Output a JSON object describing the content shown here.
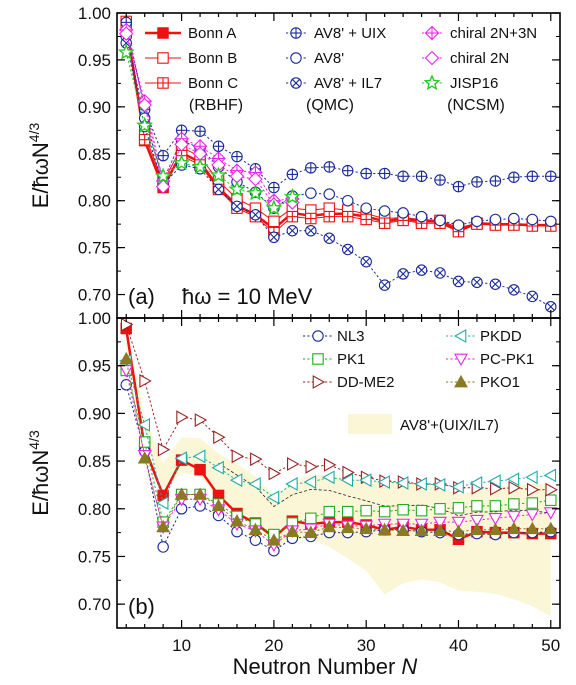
{
  "chart_data": [
    {
      "panel": "(a)",
      "type": "line",
      "annotation": "ħω = 10 MeV",
      "ylabel": "E/ħωN^{4/3}",
      "xlabel": "",
      "xlim": [
        3,
        51
      ],
      "ylim": [
        0.675,
        1.0
      ],
      "x_ticks": [
        10,
        20,
        30,
        40,
        50
      ],
      "y_ticks": [
        "0.70",
        "0.75",
        "0.80",
        "0.85",
        "0.90",
        "0.95",
        "1.00"
      ],
      "group_labels": [
        "(RBHF)",
        "(QMC)",
        "(NCSM)"
      ],
      "series": [
        {
          "name": "Bonn A",
          "color": "#ee1111",
          "marker": "square-filled",
          "dash": "solid",
          "width": 2.5,
          "x": [
            4,
            6,
            8,
            10,
            12,
            14,
            16,
            18,
            20,
            22,
            24,
            26,
            28,
            30,
            32,
            34,
            36,
            38,
            40,
            42,
            44,
            46,
            48,
            50
          ],
          "y": [
            0.989,
            0.864,
            0.814,
            0.851,
            0.841,
            0.814,
            0.795,
            0.785,
            0.77,
            0.787,
            0.784,
            0.786,
            0.786,
            0.783,
            0.778,
            0.781,
            0.778,
            0.778,
            0.768,
            0.776,
            0.775,
            0.775,
            0.774,
            0.774
          ]
        },
        {
          "name": "Bonn B",
          "color": "#ee1111",
          "marker": "square-open",
          "dash": "solid",
          "width": 1,
          "x": [
            4,
            6,
            8,
            10,
            12,
            14,
            16,
            18,
            20,
            22,
            24,
            26,
            28,
            30,
            32,
            34,
            36,
            38,
            40,
            42,
            44,
            46,
            48,
            50
          ],
          "y": [
            0.991,
            0.87,
            0.82,
            0.857,
            0.847,
            0.821,
            0.802,
            0.792,
            0.778,
            0.792,
            0.79,
            0.792,
            0.79,
            0.786,
            0.781,
            0.782,
            0.78,
            0.779,
            0.771,
            0.776,
            0.776,
            0.775,
            0.775,
            0.774
          ]
        },
        {
          "name": "Bonn C",
          "color": "#ee1111",
          "marker": "square-cross",
          "dash": "solid",
          "width": 1,
          "x": [
            4,
            6,
            8,
            10,
            12,
            14,
            16,
            18,
            20,
            22,
            24,
            26,
            28,
            30,
            32,
            34,
            36,
            38,
            40,
            42,
            44,
            46,
            48,
            50
          ],
          "y": [
            0.987,
            0.865,
            0.818,
            0.848,
            0.838,
            0.812,
            0.792,
            0.783,
            0.766,
            0.783,
            0.781,
            0.783,
            0.783,
            0.78,
            0.776,
            0.779,
            0.776,
            0.776,
            0.767,
            0.775,
            0.774,
            0.774,
            0.773,
            0.773
          ]
        },
        {
          "name": "AV8' + UIX",
          "color": "#1a2a99",
          "marker": "circle-plus",
          "dash": "dot",
          "width": 1,
          "x": [
            4,
            6,
            8,
            10,
            12,
            14,
            16,
            18,
            20,
            22,
            24,
            26,
            28,
            30,
            32,
            34,
            36,
            38,
            40,
            42,
            44,
            46,
            48,
            50
          ],
          "y": [
            0.99,
            0.897,
            0.848,
            0.875,
            0.874,
            0.858,
            0.847,
            0.834,
            0.814,
            0.828,
            0.835,
            0.836,
            0.832,
            0.829,
            0.829,
            0.826,
            0.826,
            0.822,
            0.815,
            0.82,
            0.821,
            0.825,
            0.826,
            0.826
          ]
        },
        {
          "name": "AV8'",
          "color": "#1a2a99",
          "marker": "circle-open",
          "dash": "dot",
          "width": 1,
          "x": [
            4,
            6,
            8,
            10,
            12,
            14,
            16,
            18,
            20,
            22,
            24,
            26,
            28,
            30,
            32,
            34,
            36,
            38,
            40,
            42,
            44,
            46,
            48,
            50
          ],
          "y": [
            0.975,
            0.888,
            0.822,
            0.864,
            0.856,
            0.836,
            0.82,
            0.809,
            0.792,
            0.805,
            0.808,
            0.807,
            0.8,
            0.792,
            0.789,
            0.787,
            0.783,
            0.779,
            0.774,
            0.778,
            0.78,
            0.781,
            0.78,
            0.778
          ]
        },
        {
          "name": "AV8' + IL7",
          "color": "#1a2a99",
          "marker": "circle-x",
          "dash": "dot",
          "width": 1,
          "x": [
            4,
            6,
            8,
            10,
            12,
            14,
            16,
            18,
            20,
            22,
            24,
            26,
            28,
            30,
            32,
            34,
            36,
            38,
            40,
            42,
            44,
            46,
            48,
            50
          ],
          "y": [
            0.968,
            0.879,
            0.817,
            0.838,
            0.834,
            0.812,
            0.794,
            0.785,
            0.761,
            0.768,
            0.768,
            0.76,
            0.748,
            0.735,
            0.71,
            0.722,
            0.726,
            0.723,
            0.714,
            0.713,
            0.711,
            0.705,
            0.698,
            0.687
          ]
        },
        {
          "name": "chiral 2N+3N",
          "color": "#ee22ee",
          "marker": "diamond-plus",
          "dash": "dot",
          "width": 1,
          "x": [
            4,
            6,
            8,
            10,
            12,
            14,
            16,
            18,
            20,
            22
          ],
          "y": [
            0.982,
            0.906,
            0.821,
            0.866,
            0.858,
            0.845,
            0.832,
            0.83,
            0.8,
            0.802
          ]
        },
        {
          "name": "chiral 2N",
          "color": "#ee22ee",
          "marker": "diamond-open",
          "dash": "dot",
          "width": 1,
          "x": [
            4,
            6,
            8,
            10,
            12,
            14,
            16,
            18,
            20,
            22
          ],
          "y": [
            0.978,
            0.902,
            0.815,
            0.86,
            0.85,
            0.838,
            0.826,
            0.823,
            0.796,
            0.798
          ]
        },
        {
          "name": "JISP16",
          "color": "#22cc22",
          "marker": "star-open",
          "dash": "dot",
          "width": 1,
          "x": [
            4,
            6,
            8,
            10,
            12,
            14,
            16,
            18,
            20,
            22
          ],
          "y": [
            0.958,
            0.88,
            0.826,
            0.84,
            0.836,
            0.827,
            0.812,
            0.808,
            0.792,
            0.804
          ]
        }
      ]
    },
    {
      "panel": "(b)",
      "type": "line",
      "xlabel": "Neutron Number N",
      "ylabel": "E/ħωN^{4/3}",
      "xlim": [
        3,
        51
      ],
      "ylim": [
        0.675,
        1.0
      ],
      "x_ticks": [
        10,
        20,
        30,
        40,
        50
      ],
      "y_ticks": [
        "0.70",
        "0.75",
        "0.80",
        "0.85",
        "0.90",
        "0.95",
        "1.00"
      ],
      "band": {
        "name": "AV8'+(UIX/IL7)",
        "color": "#fbf7d6",
        "x": [
          4,
          6,
          8,
          10,
          12,
          14,
          16,
          18,
          20,
          22,
          24,
          26,
          28,
          30,
          32,
          34,
          36,
          38,
          40,
          42,
          44,
          46,
          48,
          50
        ],
        "upper": [
          0.99,
          0.897,
          0.848,
          0.875,
          0.874,
          0.858,
          0.847,
          0.834,
          0.814,
          0.828,
          0.835,
          0.836,
          0.832,
          0.829,
          0.829,
          0.826,
          0.826,
          0.822,
          0.815,
          0.82,
          0.821,
          0.825,
          0.826,
          0.826
        ],
        "lower": [
          0.968,
          0.879,
          0.817,
          0.838,
          0.834,
          0.812,
          0.794,
          0.785,
          0.761,
          0.768,
          0.768,
          0.76,
          0.748,
          0.735,
          0.71,
          0.722,
          0.726,
          0.723,
          0.714,
          0.713,
          0.711,
          0.705,
          0.698,
          0.687
        ]
      },
      "series": [
        {
          "name": "",
          "color": "#ee1111",
          "marker": "square-filled",
          "dash": "solid",
          "width": 2.5,
          "legend": false,
          "x": [
            4,
            6,
            8,
            10,
            12,
            14,
            16,
            18,
            20,
            22,
            24,
            26,
            28,
            30,
            32,
            34,
            36,
            38,
            40,
            42,
            44,
            46,
            48,
            50
          ],
          "y": [
            0.989,
            0.864,
            0.814,
            0.851,
            0.841,
            0.814,
            0.795,
            0.785,
            0.77,
            0.787,
            0.784,
            0.786,
            0.786,
            0.783,
            0.778,
            0.781,
            0.778,
            0.778,
            0.768,
            0.776,
            0.775,
            0.775,
            0.774,
            0.774
          ]
        },
        {
          "name": "NL3",
          "color": "#1a2a99",
          "marker": "circle-open",
          "dash": "dot",
          "width": 1,
          "x": [
            4,
            6,
            8,
            10,
            12,
            14,
            16,
            18,
            20,
            22,
            24,
            26,
            28,
            30,
            32,
            34,
            36,
            38,
            40,
            42,
            44,
            46,
            48,
            50
          ],
          "y": [
            0.93,
            0.86,
            0.76,
            0.8,
            0.803,
            0.793,
            0.776,
            0.767,
            0.756,
            0.769,
            0.771,
            0.775,
            0.775,
            0.776,
            0.778,
            0.778,
            0.776,
            0.775,
            0.773,
            0.774,
            0.773,
            0.775,
            0.775,
            0.776
          ]
        },
        {
          "name": "PK1",
          "color": "#22aa22",
          "marker": "square-open",
          "dash": "dot",
          "width": 1,
          "x": [
            4,
            6,
            8,
            10,
            12,
            14,
            16,
            18,
            20,
            22,
            24,
            26,
            28,
            30,
            32,
            34,
            36,
            38,
            40,
            42,
            44,
            46,
            48,
            50
          ],
          "y": [
            0.945,
            0.87,
            0.786,
            0.815,
            0.815,
            0.805,
            0.792,
            0.784,
            0.773,
            0.785,
            0.79,
            0.797,
            0.797,
            0.798,
            0.797,
            0.799,
            0.798,
            0.8,
            0.801,
            0.803,
            0.803,
            0.805,
            0.806,
            0.809
          ]
        },
        {
          "name": "DD-ME2",
          "color": "#992222",
          "marker": "triangle-right",
          "dash": "dot",
          "width": 1,
          "x": [
            4,
            6,
            8,
            10,
            12,
            14,
            16,
            18,
            20,
            22,
            24,
            26,
            28,
            30,
            32,
            34,
            36,
            38,
            40,
            42,
            44,
            46,
            48,
            50
          ],
          "y": [
            0.993,
            0.934,
            0.862,
            0.896,
            0.893,
            0.875,
            0.855,
            0.852,
            0.837,
            0.847,
            0.844,
            0.846,
            0.838,
            0.833,
            0.829,
            0.828,
            0.826,
            0.826,
            0.822,
            0.822,
            0.821,
            0.822,
            0.82,
            0.82
          ]
        },
        {
          "name": "PKDD",
          "color": "#22aaaa",
          "marker": "triangle-left",
          "dash": "dot",
          "width": 1,
          "x": [
            4,
            6,
            8,
            10,
            12,
            14,
            16,
            18,
            20,
            22,
            24,
            26,
            28,
            30,
            32,
            34,
            36,
            38,
            40,
            42,
            44,
            46,
            48,
            50
          ],
          "y": [
            0.955,
            0.888,
            0.806,
            0.853,
            0.855,
            0.843,
            0.83,
            0.826,
            0.812,
            0.826,
            0.828,
            0.833,
            0.83,
            0.83,
            0.828,
            0.827,
            0.826,
            0.825,
            0.823,
            0.827,
            0.829,
            0.831,
            0.833,
            0.835
          ]
        },
        {
          "name": "PC-PK1",
          "color": "#ee22ee",
          "marker": "triangle-down",
          "dash": "dot",
          "width": 1,
          "x": [
            4,
            6,
            8,
            10,
            12,
            14,
            16,
            18,
            20,
            22,
            24,
            26,
            28,
            30,
            32,
            34,
            36,
            38,
            40,
            42,
            44,
            46,
            48,
            50
          ],
          "y": [
            0.945,
            0.856,
            0.781,
            0.81,
            0.81,
            0.799,
            0.784,
            0.777,
            0.762,
            0.777,
            0.779,
            0.784,
            0.782,
            0.782,
            0.784,
            0.784,
            0.784,
            0.786,
            0.786,
            0.788,
            0.79,
            0.792,
            0.794,
            0.796
          ]
        },
        {
          "name": "PKO1",
          "color": "#8a7a22",
          "marker": "triangle-up",
          "dash": "dot",
          "width": 1,
          "x": [
            4,
            6,
            8,
            10,
            12,
            14,
            16,
            18,
            20,
            22,
            24,
            26,
            28,
            30,
            32,
            34,
            36,
            38,
            40,
            42,
            44,
            46,
            48,
            50
          ],
          "y": [
            0.957,
            0.853,
            0.781,
            0.815,
            0.815,
            0.803,
            0.787,
            0.778,
            0.767,
            0.776,
            0.775,
            0.781,
            0.78,
            0.779,
            0.778,
            0.777,
            0.777,
            0.777,
            0.776,
            0.778,
            0.778,
            0.779,
            0.779,
            0.779
          ]
        }
      ]
    }
  ]
}
